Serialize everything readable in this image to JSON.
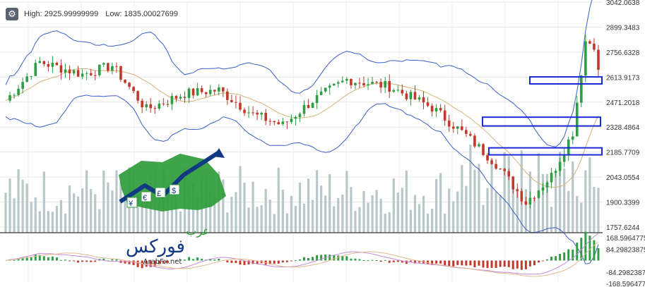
{
  "header": {
    "high_label": "High: 2925.99999999",
    "low_label": "Low: 1835.00027699",
    "settings_icon": "gear-icon"
  },
  "watermark": {
    "site": "ArabFx.net",
    "arabic_top": "عرب",
    "arabic_bottom": "فوركس"
  },
  "colors": {
    "up": "#2e9e45",
    "down": "#c0392b",
    "band": "#3a5fc8",
    "ma": "#d4b27a",
    "volume": "#b8c7c9",
    "highlight": "#1a2ad6",
    "macd_signal": "#e3b98e",
    "macd_line": "#c68bd9"
  },
  "chart_data": {
    "type": "candlestick",
    "price_axis_ticks": [
      "3042.0638",
      "2899.3483",
      "2756.6328",
      "2613.9173",
      "2471.2018",
      "2328.4864",
      "2185.7709",
      "2043.0554",
      "1900.3399",
      "1757.6244"
    ],
    "indicator_axis_ticks": [
      "168.5964775",
      "84.29823875",
      "-84.2982387",
      "-168.596477"
    ],
    "price_range": [
      1757.6244,
      3042.0638
    ],
    "high": 2925.99999999,
    "low": 1835.00027699,
    "series_shown": [
      "price candles",
      "bollinger upper",
      "bollinger lower",
      "moving average",
      "volume",
      "macd histogram"
    ],
    "highlight_zones": [
      {
        "from_price": 2575,
        "to_price": 2615
      },
      {
        "from_price": 2335,
        "to_price": 2385
      },
      {
        "from_price": 2170,
        "to_price": 2210
      }
    ],
    "grid": true
  }
}
